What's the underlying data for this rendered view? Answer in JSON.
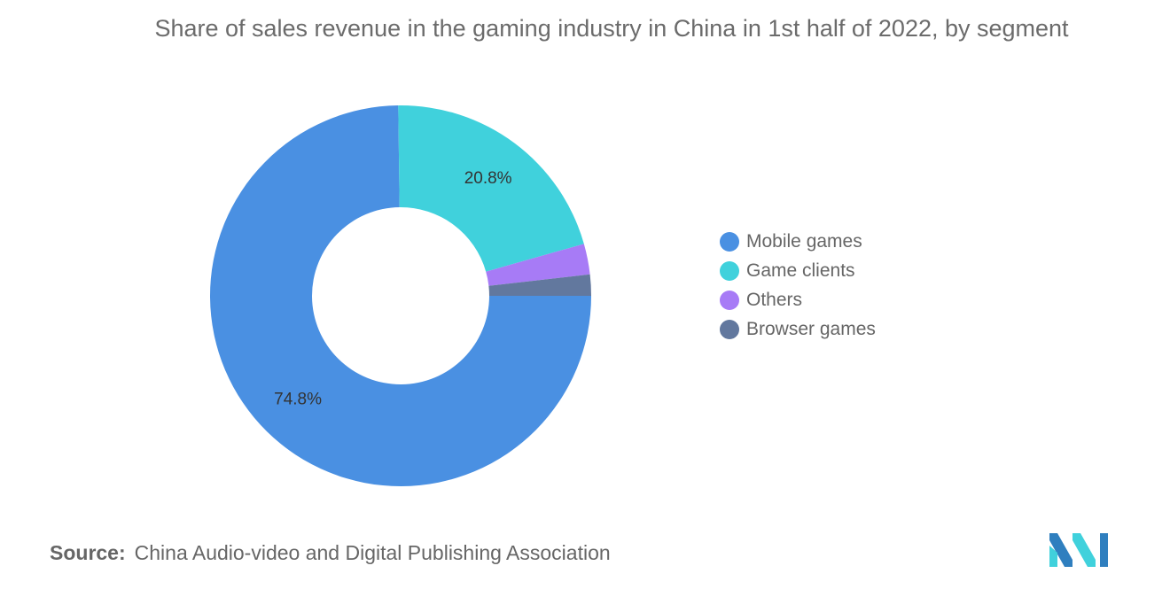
{
  "chart_data": {
    "type": "pie",
    "style": "donut",
    "title": "Share of sales revenue in the gaming industry in China in 1st half of 2022, by segment",
    "categories": [
      "Mobile games",
      "Game clients",
      "Others",
      "Browser games"
    ],
    "values": [
      74.8,
      20.8,
      2.6,
      1.8
    ],
    "data_labels": [
      "74.8%",
      "20.8%",
      "",
      ""
    ],
    "colors": [
      "#4a90e2",
      "#40d1dc",
      "#a77bf6",
      "#62789e"
    ],
    "legend_position": "right"
  },
  "source": {
    "label": "Source:",
    "text": "China Audio-video and Digital Publishing Association"
  },
  "colors": {
    "label_text": "#333333",
    "logo_primary": "#2f7fbf",
    "logo_secondary": "#40d1dc"
  }
}
